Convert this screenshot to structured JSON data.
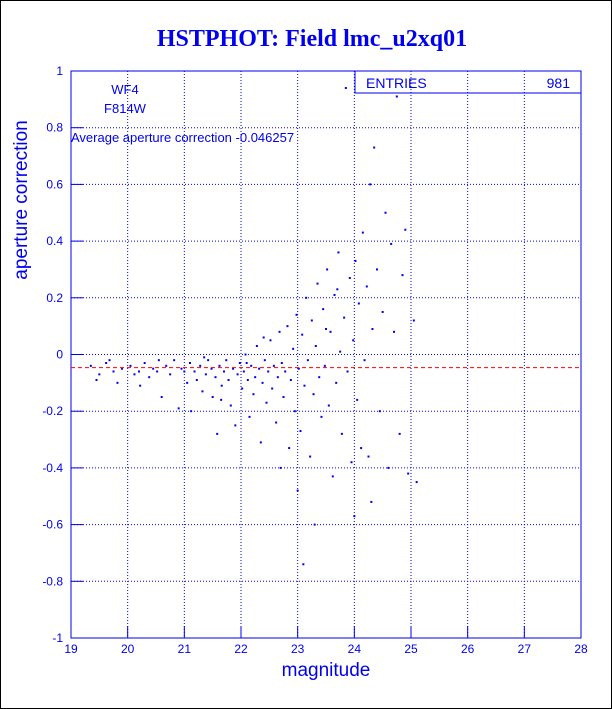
{
  "chart_data": {
    "type": "scatter",
    "title": "HSTPHOT: Field lmc_u2xq01",
    "xlabel": "magnitude",
    "ylabel": "aperture correction",
    "xlim": [
      19,
      28
    ],
    "ylim": [
      -1,
      1
    ],
    "x_ticks": [
      "19",
      "20",
      "21",
      "22",
      "23",
      "24",
      "25",
      "26",
      "27",
      "28"
    ],
    "y_ticks": [
      "-1",
      "-0.8",
      "-0.6",
      "-0.4",
      "-0.2",
      "0",
      "0.2",
      "0.4",
      "0.6",
      "0.8",
      "1"
    ],
    "grid": true,
    "annotations": [
      "WF4",
      "F814W",
      "Average aperture correction  -0.046257"
    ],
    "stats_box": {
      "label": "ENTRIES",
      "value": "981"
    },
    "reference_line": {
      "y": -0.046257,
      "style": "dashed",
      "color": "#ff0000"
    },
    "point_color": "#0000ee",
    "points": [
      [
        19.35,
        -0.04
      ],
      [
        19.5,
        -0.07
      ],
      [
        19.62,
        -0.03
      ],
      [
        19.75,
        -0.06
      ],
      [
        19.82,
        -0.1
      ],
      [
        19.9,
        -0.05
      ],
      [
        20.05,
        -0.04
      ],
      [
        20.12,
        -0.07
      ],
      [
        20.2,
        -0.06
      ],
      [
        20.3,
        -0.03
      ],
      [
        20.38,
        -0.08
      ],
      [
        20.45,
        -0.05
      ],
      [
        20.52,
        -0.06
      ],
      [
        20.6,
        -0.15
      ],
      [
        20.68,
        -0.04
      ],
      [
        20.75,
        -0.07
      ],
      [
        20.82,
        -0.02
      ],
      [
        20.9,
        -0.19
      ],
      [
        20.95,
        -0.05
      ],
      [
        21.0,
        -0.06
      ],
      [
        21.05,
        -0.1
      ],
      [
        21.1,
        -0.03
      ],
      [
        21.12,
        -0.2
      ],
      [
        21.18,
        -0.06
      ],
      [
        21.22,
        -0.09
      ],
      [
        21.28,
        -0.04
      ],
      [
        21.32,
        -0.13
      ],
      [
        21.38,
        -0.07
      ],
      [
        21.42,
        -0.02
      ],
      [
        21.48,
        -0.05
      ],
      [
        21.5,
        -0.15
      ],
      [
        21.55,
        -0.08
      ],
      [
        21.58,
        -0.28
      ],
      [
        21.62,
        -0.04
      ],
      [
        21.66,
        -0.11
      ],
      [
        21.7,
        -0.06
      ],
      [
        21.74,
        -0.02
      ],
      [
        21.78,
        -0.09
      ],
      [
        21.82,
        -0.18
      ],
      [
        21.86,
        -0.05
      ],
      [
        21.9,
        -0.25
      ],
      [
        21.94,
        -0.07
      ],
      [
        21.98,
        -0.03
      ],
      [
        22.02,
        -0.12
      ],
      [
        22.05,
        -0.06
      ],
      [
        22.08,
        0.0
      ],
      [
        22.12,
        -0.09
      ],
      [
        22.15,
        -0.22
      ],
      [
        22.18,
        -0.04
      ],
      [
        22.22,
        -0.14
      ],
      [
        22.25,
        -0.08
      ],
      [
        22.28,
        0.03
      ],
      [
        22.32,
        -0.05
      ],
      [
        22.35,
        -0.31
      ],
      [
        22.38,
        -0.1
      ],
      [
        22.42,
        -0.02
      ],
      [
        22.45,
        -0.17
      ],
      [
        22.48,
        -0.06
      ],
      [
        22.52,
        0.05
      ],
      [
        22.55,
        -0.12
      ],
      [
        22.58,
        -0.04
      ],
      [
        22.62,
        -0.24
      ],
      [
        22.65,
        -0.08
      ],
      [
        22.68,
        0.08
      ],
      [
        22.72,
        -0.03
      ],
      [
        22.75,
        -0.15
      ],
      [
        22.78,
        -0.06
      ],
      [
        22.82,
        0.1
      ],
      [
        22.85,
        -0.33
      ],
      [
        22.88,
        -0.09
      ],
      [
        22.92,
        0.02
      ],
      [
        22.95,
        -0.2
      ],
      [
        22.98,
        0.14
      ],
      [
        23.02,
        -0.05
      ],
      [
        23.05,
        -0.27
      ],
      [
        23.08,
        0.07
      ],
      [
        23.12,
        -0.11
      ],
      [
        23.15,
        0.2
      ],
      [
        23.18,
        -0.02
      ],
      [
        23.22,
        -0.36
      ],
      [
        23.25,
        0.12
      ],
      [
        23.28,
        -0.14
      ],
      [
        23.32,
        0.03
      ],
      [
        23.35,
        0.25
      ],
      [
        23.38,
        -0.08
      ],
      [
        23.42,
        -0.22
      ],
      [
        23.45,
        0.16
      ],
      [
        23.48,
        -0.04
      ],
      [
        23.52,
        0.3
      ],
      [
        23.55,
        -0.18
      ],
      [
        23.58,
        0.08
      ],
      [
        23.62,
        -0.43
      ],
      [
        23.65,
        0.21
      ],
      [
        23.68,
        -0.1
      ],
      [
        23.72,
        0.36
      ],
      [
        23.75,
        0.01
      ],
      [
        23.78,
        -0.28
      ],
      [
        23.82,
        0.13
      ],
      [
        23.85,
        0.94
      ],
      [
        23.88,
        -0.06
      ],
      [
        23.92,
        0.27
      ],
      [
        23.95,
        -0.38
      ],
      [
        23.98,
        0.05
      ],
      [
        24.02,
        0.33
      ],
      [
        24.05,
        -0.16
      ],
      [
        24.08,
        0.18
      ],
      [
        24.12,
        -0.33
      ],
      [
        24.15,
        0.43
      ],
      [
        24.18,
        -0.02
      ],
      [
        24.22,
        0.24
      ],
      [
        24.25,
        -0.36
      ],
      [
        24.28,
        0.6
      ],
      [
        24.32,
        0.09
      ],
      [
        24.35,
        0.73
      ],
      [
        24.4,
        0.3
      ],
      [
        24.45,
        -0.2
      ],
      [
        24.5,
        0.15
      ],
      [
        24.55,
        0.5
      ],
      [
        24.6,
        -0.4
      ],
      [
        24.65,
        0.39
      ],
      [
        24.7,
        0.08
      ],
      [
        24.75,
        0.91
      ],
      [
        24.8,
        -0.28
      ],
      [
        24.85,
        0.28
      ],
      [
        24.9,
        0.44
      ],
      [
        24.95,
        -0.42
      ],
      [
        25.05,
        0.12
      ],
      [
        25.1,
        -0.45
      ],
      [
        19.45,
        -0.09
      ],
      [
        19.68,
        -0.02
      ],
      [
        20.22,
        -0.11
      ],
      [
        20.55,
        -0.02
      ],
      [
        21.35,
        -0.01
      ],
      [
        21.65,
        -0.16
      ],
      [
        22.1,
        -0.03
      ],
      [
        22.4,
        0.06
      ],
      [
        22.7,
        -0.4
      ],
      [
        23.0,
        -0.48
      ],
      [
        23.3,
        -0.6
      ],
      [
        23.1,
        -0.74
      ],
      [
        23.5,
        0.09
      ],
      [
        23.7,
        0.23
      ],
      [
        24.3,
        -0.52
      ],
      [
        24.0,
        -0.57
      ]
    ]
  }
}
